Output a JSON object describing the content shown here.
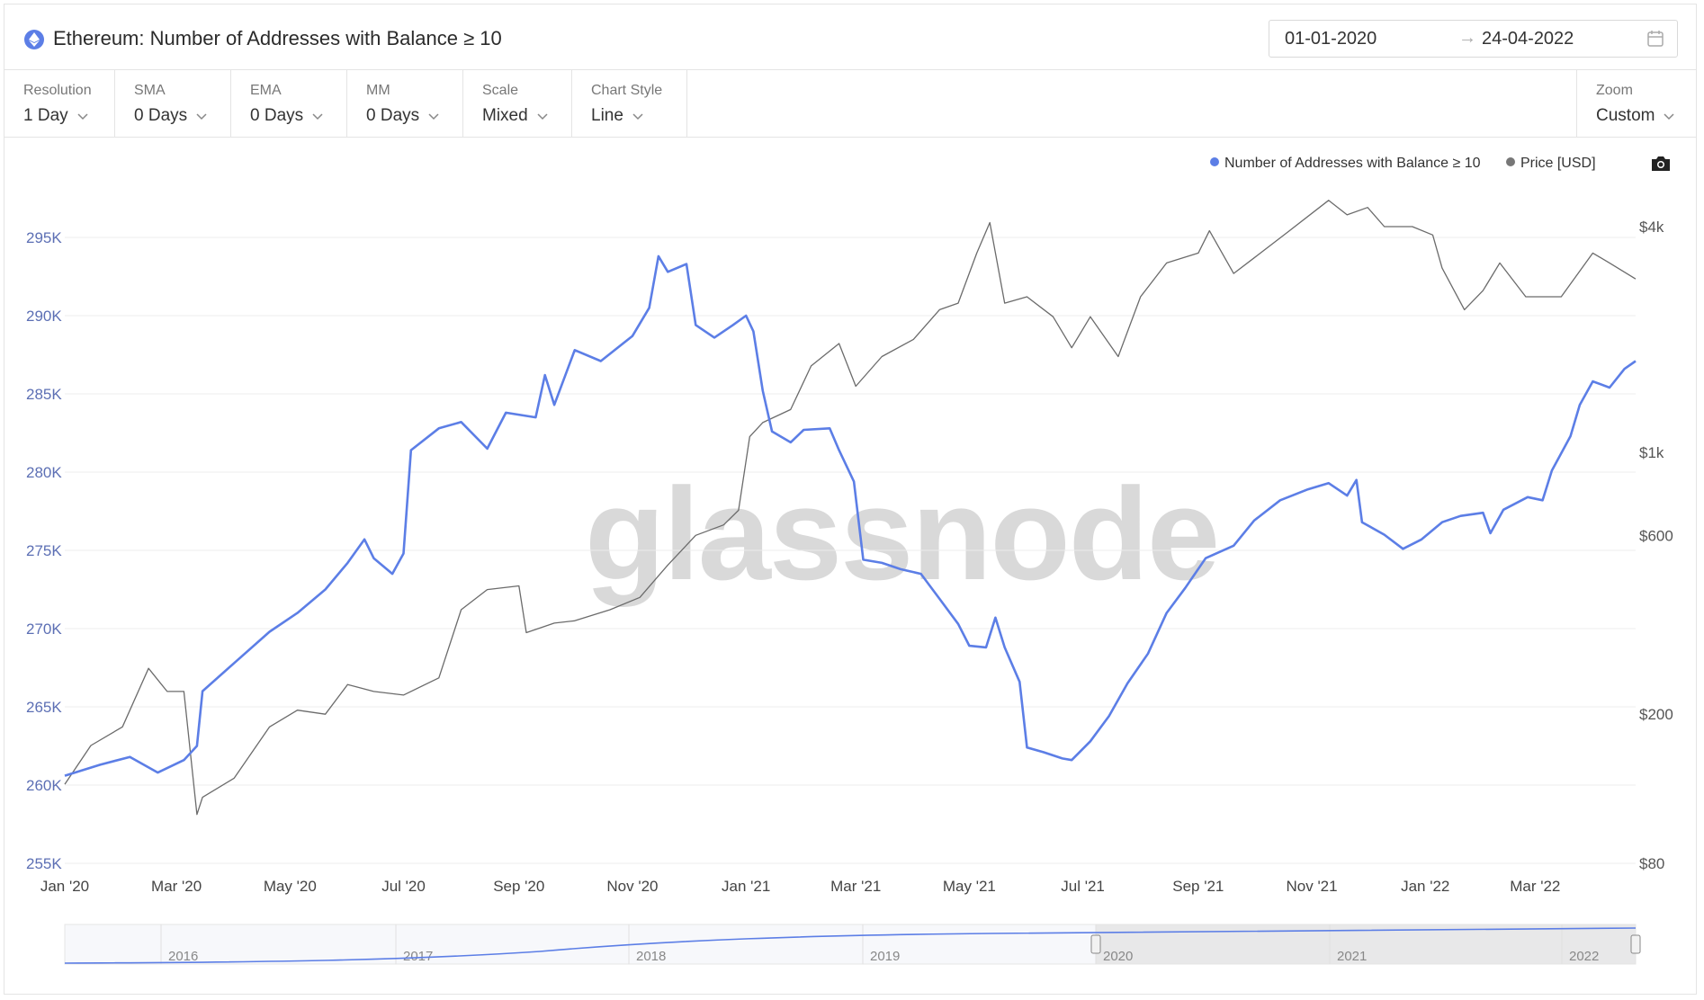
{
  "header": {
    "title": "Ethereum: Number of Addresses with Balance ≥ 10",
    "date_from": "01-01-2020",
    "date_to": "24-04-2022",
    "date_arrow": "→"
  },
  "controls": [
    {
      "label": "Resolution",
      "value": "1 Day"
    },
    {
      "label": "SMA",
      "value": "0 Days"
    },
    {
      "label": "EMA",
      "value": "0 Days"
    },
    {
      "label": "MM",
      "value": "0 Days"
    },
    {
      "label": "Scale",
      "value": "Mixed"
    },
    {
      "label": "Chart Style",
      "value": "Line"
    }
  ],
  "zoom": {
    "label": "Zoom",
    "value": "Custom"
  },
  "legend": [
    {
      "name": "Number of Addresses with Balance ≥ 10",
      "color": "#5c7ee6"
    },
    {
      "name": "Price [USD]",
      "color": "#777777"
    }
  ],
  "watermark": "glassnode",
  "colors": {
    "primary": "#5c7ee6",
    "price": "#6b6b6b",
    "grid": "#ececec",
    "axis_left_text": "#5c6fb4",
    "navigator_fill": "#e3e3e3"
  },
  "chart_data": {
    "type": "line",
    "x_ticks": [
      "Jan '20",
      "Mar '20",
      "May '20",
      "Jul '20",
      "Sep '20",
      "Nov '20",
      "Jan '21",
      "Mar '21",
      "May '21",
      "Jul '21",
      "Sep '21",
      "Nov '21",
      "Jan '22",
      "Mar '22"
    ],
    "y_left_ticks": [
      "295K",
      "290K",
      "285K",
      "280K",
      "275K",
      "270K",
      "265K",
      "260K",
      "255K"
    ],
    "y_right_ticks": [
      "$4k",
      "$1k",
      "$600",
      "$200",
      "$80"
    ],
    "y_left_range": [
      255000,
      298000
    ],
    "y_right_scale": "log",
    "grid": true,
    "legend_position": "top-right",
    "series": [
      {
        "name": "Number of Addresses with Balance ≥ 10",
        "axis": "left",
        "points": [
          [
            "2020-01-01",
            260600
          ],
          [
            "2020-01-20",
            261300
          ],
          [
            "2020-02-05",
            261800
          ],
          [
            "2020-02-20",
            260800
          ],
          [
            "2020-03-05",
            261600
          ],
          [
            "2020-03-12",
            262500
          ],
          [
            "2020-03-15",
            266000
          ],
          [
            "2020-04-01",
            267800
          ],
          [
            "2020-04-20",
            269800
          ],
          [
            "2020-05-05",
            271000
          ],
          [
            "2020-05-20",
            272500
          ],
          [
            "2020-06-01",
            274200
          ],
          [
            "2020-06-10",
            275700
          ],
          [
            "2020-06-15",
            274500
          ],
          [
            "2020-06-25",
            273500
          ],
          [
            "2020-07-01",
            274800
          ],
          [
            "2020-07-05",
            281400
          ],
          [
            "2020-07-20",
            282800
          ],
          [
            "2020-08-01",
            283200
          ],
          [
            "2020-08-15",
            281500
          ],
          [
            "2020-08-25",
            283800
          ],
          [
            "2020-09-10",
            283500
          ],
          [
            "2020-09-15",
            286200
          ],
          [
            "2020-09-20",
            284300
          ],
          [
            "2020-10-01",
            287800
          ],
          [
            "2020-10-15",
            287100
          ],
          [
            "2020-11-01",
            288700
          ],
          [
            "2020-11-10",
            290500
          ],
          [
            "2020-11-15",
            293800
          ],
          [
            "2020-11-20",
            292800
          ],
          [
            "2020-11-30",
            293300
          ],
          [
            "2020-12-05",
            289400
          ],
          [
            "2020-12-15",
            288600
          ],
          [
            "2020-12-25",
            289400
          ],
          [
            "2021-01-01",
            290000
          ],
          [
            "2021-01-05",
            289000
          ],
          [
            "2021-01-10",
            285200
          ],
          [
            "2021-01-15",
            282600
          ],
          [
            "2021-01-25",
            281900
          ],
          [
            "2021-02-01",
            282700
          ],
          [
            "2021-02-15",
            282800
          ],
          [
            "2021-02-20",
            281400
          ],
          [
            "2021-02-28",
            279400
          ],
          [
            "2021-03-05",
            274400
          ],
          [
            "2021-03-15",
            274200
          ],
          [
            "2021-03-25",
            273800
          ],
          [
            "2021-04-05",
            273500
          ],
          [
            "2021-04-15",
            271900
          ],
          [
            "2021-04-25",
            270300
          ],
          [
            "2021-05-01",
            268900
          ],
          [
            "2021-05-10",
            268800
          ],
          [
            "2021-05-15",
            270700
          ],
          [
            "2021-05-20",
            268800
          ],
          [
            "2021-05-28",
            266600
          ],
          [
            "2021-06-01",
            262400
          ],
          [
            "2021-06-10",
            262100
          ],
          [
            "2021-06-20",
            261700
          ],
          [
            "2021-06-25",
            261600
          ],
          [
            "2021-07-05",
            262800
          ],
          [
            "2021-07-15",
            264400
          ],
          [
            "2021-07-25",
            266500
          ],
          [
            "2021-08-05",
            268400
          ],
          [
            "2021-08-15",
            271000
          ],
          [
            "2021-08-25",
            272600
          ],
          [
            "2021-09-05",
            274500
          ],
          [
            "2021-09-20",
            275300
          ],
          [
            "2021-10-01",
            276900
          ],
          [
            "2021-10-15",
            278200
          ],
          [
            "2021-10-30",
            278900
          ],
          [
            "2021-11-10",
            279300
          ],
          [
            "2021-11-20",
            278500
          ],
          [
            "2021-11-25",
            279500
          ],
          [
            "2021-11-28",
            276800
          ],
          [
            "2021-12-10",
            276000
          ],
          [
            "2021-12-20",
            275100
          ],
          [
            "2021-12-30",
            275700
          ],
          [
            "2022-01-10",
            276800
          ],
          [
            "2022-01-20",
            277200
          ],
          [
            "2022-02-01",
            277400
          ],
          [
            "2022-02-05",
            276100
          ],
          [
            "2022-02-12",
            277600
          ],
          [
            "2022-02-25",
            278400
          ],
          [
            "2022-03-05",
            278200
          ],
          [
            "2022-03-10",
            280100
          ],
          [
            "2022-03-20",
            282300
          ],
          [
            "2022-03-25",
            284300
          ],
          [
            "2022-04-01",
            285800
          ],
          [
            "2022-04-10",
            285400
          ],
          [
            "2022-04-18",
            286600
          ],
          [
            "2022-04-24",
            287100
          ]
        ]
      },
      {
        "name": "Price [USD]",
        "axis": "right",
        "points": [
          [
            "2020-01-01",
            130
          ],
          [
            "2020-01-15",
            165
          ],
          [
            "2020-02-01",
            185
          ],
          [
            "2020-02-15",
            265
          ],
          [
            "2020-02-25",
            230
          ],
          [
            "2020-03-05",
            230
          ],
          [
            "2020-03-12",
            108
          ],
          [
            "2020-03-15",
            120
          ],
          [
            "2020-04-01",
            135
          ],
          [
            "2020-04-20",
            185
          ],
          [
            "2020-05-05",
            205
          ],
          [
            "2020-05-20",
            200
          ],
          [
            "2020-06-01",
            240
          ],
          [
            "2020-06-15",
            230
          ],
          [
            "2020-07-01",
            225
          ],
          [
            "2020-07-20",
            250
          ],
          [
            "2020-08-01",
            380
          ],
          [
            "2020-08-15",
            430
          ],
          [
            "2020-09-01",
            440
          ],
          [
            "2020-09-05",
            330
          ],
          [
            "2020-09-20",
            350
          ],
          [
            "2020-10-01",
            355
          ],
          [
            "2020-10-20",
            380
          ],
          [
            "2020-11-05",
            410
          ],
          [
            "2020-11-20",
            500
          ],
          [
            "2020-12-05",
            600
          ],
          [
            "2020-12-20",
            640
          ],
          [
            "2020-12-28",
            700
          ],
          [
            "2021-01-03",
            1100
          ],
          [
            "2021-01-10",
            1200
          ],
          [
            "2021-01-25",
            1300
          ],
          [
            "2021-02-05",
            1700
          ],
          [
            "2021-02-20",
            1950
          ],
          [
            "2021-03-01",
            1500
          ],
          [
            "2021-03-15",
            1800
          ],
          [
            "2021-04-01",
            2000
          ],
          [
            "2021-04-15",
            2400
          ],
          [
            "2021-04-25",
            2500
          ],
          [
            "2021-05-05",
            3400
          ],
          [
            "2021-05-12",
            4100
          ],
          [
            "2021-05-20",
            2500
          ],
          [
            "2021-06-01",
            2600
          ],
          [
            "2021-06-15",
            2300
          ],
          [
            "2021-06-25",
            1900
          ],
          [
            "2021-07-05",
            2300
          ],
          [
            "2021-07-20",
            1800
          ],
          [
            "2021-08-01",
            2600
          ],
          [
            "2021-08-15",
            3200
          ],
          [
            "2021-09-01",
            3400
          ],
          [
            "2021-09-07",
            3900
          ],
          [
            "2021-09-20",
            3000
          ],
          [
            "2021-10-01",
            3300
          ],
          [
            "2021-10-20",
            3900
          ],
          [
            "2021-11-10",
            4700
          ],
          [
            "2021-11-20",
            4300
          ],
          [
            "2021-12-01",
            4500
          ],
          [
            "2021-12-10",
            4000
          ],
          [
            "2021-12-25",
            4000
          ],
          [
            "2022-01-05",
            3800
          ],
          [
            "2022-01-10",
            3100
          ],
          [
            "2022-01-22",
            2400
          ],
          [
            "2022-02-01",
            2700
          ],
          [
            "2022-02-10",
            3200
          ],
          [
            "2022-02-24",
            2600
          ],
          [
            "2022-03-05",
            2600
          ],
          [
            "2022-03-15",
            2600
          ],
          [
            "2022-04-01",
            3400
          ],
          [
            "2022-04-10",
            3200
          ],
          [
            "2022-04-24",
            2900
          ]
        ]
      }
    ],
    "navigator": {
      "year_labels": [
        "2016",
        "2017",
        "2018",
        "2019",
        "2020",
        "2021",
        "2022"
      ]
    }
  }
}
